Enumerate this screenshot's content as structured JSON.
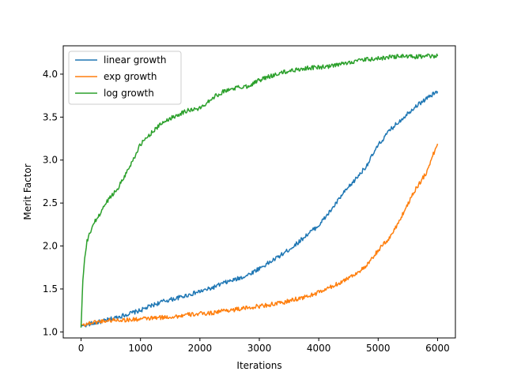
{
  "chart_data": {
    "type": "line",
    "title": "",
    "xlabel": "Iterations",
    "ylabel": "Merit Factor",
    "xlim": [
      -300,
      6300
    ],
    "ylim": [
      0.93,
      4.33
    ],
    "xticks": [
      0,
      1000,
      2000,
      3000,
      4000,
      5000,
      6000
    ],
    "xtick_labels": [
      "0",
      "1000",
      "2000",
      "3000",
      "4000",
      "5000",
      "6000"
    ],
    "yticks": [
      1.0,
      1.5,
      2.0,
      2.5,
      3.0,
      3.5,
      4.0
    ],
    "ytick_labels": [
      "1.0",
      "1.5",
      "2.0",
      "2.5",
      "3.0",
      "3.5",
      "4.0"
    ],
    "grid": false,
    "legend_position": "top-left",
    "series": [
      {
        "name": "linear growth",
        "color": "#1f77b4",
        "x": [
          0,
          200,
          400,
          600,
          800,
          1000,
          1200,
          1400,
          1600,
          1800,
          2000,
          2200,
          2400,
          2600,
          2800,
          3000,
          3200,
          3400,
          3600,
          3800,
          4000,
          4200,
          4400,
          4600,
          4800,
          5000,
          5200,
          5400,
          5600,
          5800,
          6000
        ],
        "y": [
          1.07,
          1.1,
          1.13,
          1.17,
          1.21,
          1.25,
          1.31,
          1.36,
          1.39,
          1.43,
          1.47,
          1.51,
          1.57,
          1.61,
          1.66,
          1.74,
          1.82,
          1.91,
          2.01,
          2.13,
          2.24,
          2.41,
          2.6,
          2.76,
          2.93,
          3.17,
          3.35,
          3.48,
          3.61,
          3.71,
          3.8
        ]
      },
      {
        "name": "exp growth",
        "color": "#ff7f0e",
        "x": [
          0,
          200,
          400,
          600,
          800,
          1000,
          1200,
          1400,
          1600,
          1800,
          2000,
          2200,
          2400,
          2600,
          2800,
          3000,
          3200,
          3400,
          3600,
          3800,
          4000,
          4200,
          4400,
          4600,
          4800,
          5000,
          5200,
          5400,
          5600,
          5800,
          6000
        ],
        "y": [
          1.08,
          1.11,
          1.13,
          1.14,
          1.14,
          1.15,
          1.16,
          1.17,
          1.18,
          1.2,
          1.21,
          1.22,
          1.25,
          1.26,
          1.28,
          1.3,
          1.32,
          1.34,
          1.38,
          1.41,
          1.46,
          1.52,
          1.59,
          1.67,
          1.76,
          1.95,
          2.1,
          2.35,
          2.63,
          2.84,
          3.19
        ]
      },
      {
        "name": "log growth",
        "color": "#2ca02c",
        "x": [
          0,
          30,
          60,
          100,
          150,
          200,
          300,
          400,
          500,
          600,
          800,
          1000,
          1200,
          1400,
          1600,
          1800,
          2000,
          2200,
          2400,
          2600,
          2800,
          3000,
          3200,
          3400,
          3600,
          3800,
          4000,
          4200,
          4400,
          4600,
          4800,
          5000,
          5200,
          5400,
          5600,
          5800,
          6000
        ],
        "y": [
          1.05,
          1.6,
          1.85,
          2.05,
          2.15,
          2.25,
          2.35,
          2.48,
          2.58,
          2.65,
          2.9,
          3.18,
          3.33,
          3.45,
          3.52,
          3.58,
          3.6,
          3.72,
          3.8,
          3.84,
          3.86,
          3.93,
          3.98,
          4.02,
          4.05,
          4.07,
          4.08,
          4.09,
          4.12,
          4.15,
          4.17,
          4.18,
          4.2,
          4.21,
          4.2,
          4.21,
          4.21
        ]
      }
    ]
  }
}
